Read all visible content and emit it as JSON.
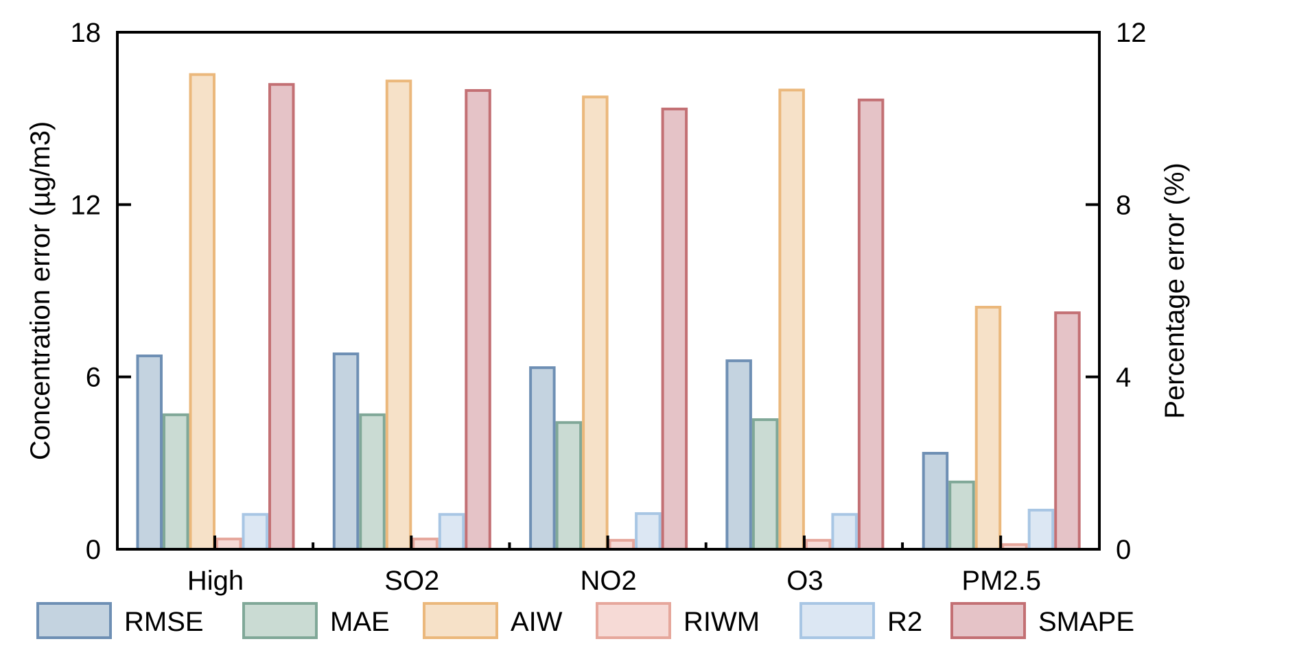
{
  "chart_data": {
    "type": "bar",
    "title": "",
    "categories": [
      "High",
      "SO2",
      "NO2",
      "O3",
      "PM2.5"
    ],
    "xlabel": "",
    "ylabel": "Concentration error (µg/m3)",
    "ylabel_right": "Percentage error (%)",
    "ylim": [
      0,
      18
    ],
    "ylim_right": [
      0,
      12
    ],
    "yticks": [
      0,
      6,
      12,
      18
    ],
    "yticks_right": [
      0,
      4,
      8,
      12
    ],
    "grid": false,
    "legend_position": "bottom",
    "series": [
      {
        "name": "RMSE",
        "axis": "left",
        "fill": "#c4d3e0",
        "stroke": "#6e8fb4",
        "values": [
          6.78,
          6.85,
          6.37,
          6.61,
          3.39
        ]
      },
      {
        "name": "MAE",
        "axis": "left",
        "fill": "#cadbd3",
        "stroke": "#80a898",
        "values": [
          4.73,
          4.73,
          4.46,
          4.56,
          2.39
        ]
      },
      {
        "name": "AIW",
        "axis": "right",
        "fill": "#f6e1c8",
        "stroke": "#ebb87c",
        "values": [
          11.05,
          10.9,
          10.53,
          10.69,
          5.65
        ]
      },
      {
        "name": "RIWM",
        "axis": "right",
        "fill": "#f6dad6",
        "stroke": "#e6a79c",
        "values": [
          0.27,
          0.27,
          0.24,
          0.24,
          0.14
        ]
      },
      {
        "name": "R2",
        "axis": "right",
        "fill": "#dce7f3",
        "stroke": "#a8c6e4",
        "values": [
          0.84,
          0.84,
          0.86,
          0.84,
          0.94
        ]
      },
      {
        "name": "SMAPE",
        "axis": "right",
        "fill": "#e5c3c7",
        "stroke": "#c37074",
        "values": [
          10.82,
          10.68,
          10.25,
          10.46,
          5.52
        ]
      }
    ]
  }
}
